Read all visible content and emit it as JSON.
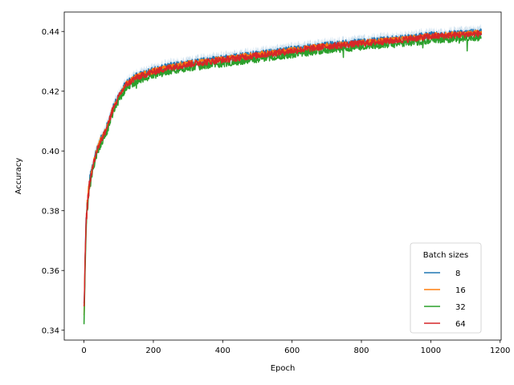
{
  "chart_data": {
    "type": "line",
    "title": "",
    "xlabel": "Epoch",
    "ylabel": "Accuracy",
    "xlim": [
      -57,
      1203
    ],
    "ylim": [
      0.3367,
      0.4465
    ],
    "xticks": [
      0,
      200,
      400,
      600,
      800,
      1000,
      1200
    ],
    "xtick_labels": [
      "0",
      "200",
      "400",
      "600",
      "800",
      "1000",
      "1200"
    ],
    "yticks": [
      0.34,
      0.36,
      0.38,
      0.4,
      0.42,
      0.44
    ],
    "ytick_labels": [
      "0.34",
      "0.36",
      "0.38",
      "0.40",
      "0.42",
      "0.44"
    ],
    "grid": false,
    "legend": {
      "title": "Batch sizes",
      "position": "lower-right"
    },
    "curve_shape": {
      "x": [
        0,
        3,
        6,
        10,
        15,
        20,
        30,
        40,
        50,
        60,
        70,
        80,
        100,
        120,
        150,
        200,
        250,
        300,
        400,
        500,
        600,
        700,
        800,
        900,
        1000,
        1100,
        1146
      ],
      "y": [
        0.343,
        0.362,
        0.376,
        0.383,
        0.388,
        0.392,
        0.397,
        0.401,
        0.404,
        0.406,
        0.409,
        0.413,
        0.418,
        0.422,
        0.4245,
        0.4265,
        0.428,
        0.429,
        0.4305,
        0.432,
        0.4335,
        0.435,
        0.436,
        0.437,
        0.4383,
        0.439,
        0.4393
      ]
    },
    "series": [
      {
        "name": "8",
        "color": "#1f77b4",
        "epochs": 1146,
        "y_start": 0.349,
        "offset": 0.0005,
        "noise": 0.0011
      },
      {
        "name": "16",
        "color": "#ff7f0e",
        "epochs": 1146,
        "y_start": 0.345,
        "offset": 0.0002,
        "noise": 0.001
      },
      {
        "name": "32",
        "color": "#2ca02c",
        "epochs": 1146,
        "y_start": 0.342,
        "offset": -0.0012,
        "noise": 0.0012
      },
      {
        "name": "64",
        "color": "#d62728",
        "epochs": 1146,
        "y_start": 0.348,
        "offset": 0.0,
        "noise": 0.0011
      }
    ],
    "shaded_band": {
      "color": "#1f77b4",
      "opacity": 0.22,
      "half_width": 0.0016
    }
  }
}
